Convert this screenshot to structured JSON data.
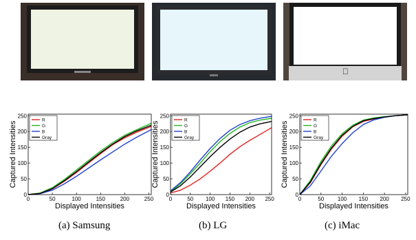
{
  "photos": [
    {
      "monitor": "Samsung",
      "screen_color": "#eef3e4",
      "bezel_color": "#1c1c1c",
      "background_color": "#3a2e28"
    },
    {
      "monitor": "LG",
      "screen_color": "#e6f6fb",
      "bezel_color": "#2a2c30",
      "background_color": "#262a30"
    },
    {
      "monitor": "iMac",
      "screen_color": "#ffffff",
      "bezel_color": "#1a1a1a",
      "background_color": "#50463e",
      "logo": "apple-logo-icon"
    }
  ],
  "chart_data": [
    {
      "type": "line",
      "xlabel": "Displayed Intensities",
      "ylabel": "Captured Intensities",
      "xlim": [
        0,
        255
      ],
      "ylim": [
        0,
        255
      ],
      "xticks": [
        0,
        50,
        100,
        150,
        200,
        250
      ],
      "yticks": [
        0,
        50,
        100,
        150,
        200,
        250
      ],
      "x": [
        0,
        25,
        50,
        75,
        100,
        125,
        150,
        175,
        200,
        225,
        255
      ],
      "legend": "top-left",
      "series": [
        {
          "name": "R",
          "color": "#e02020",
          "values": [
            0,
            4,
            18,
            42,
            70,
            100,
            130,
            158,
            180,
            198,
            216
          ]
        },
        {
          "name": "G",
          "color": "#22b722",
          "values": [
            0,
            5,
            22,
            48,
            78,
            108,
            138,
            165,
            188,
            206,
            226
          ]
        },
        {
          "name": "B",
          "color": "#2040d0",
          "values": [
            0,
            3,
            14,
            34,
            58,
            84,
            110,
            135,
            160,
            182,
            206
          ]
        },
        {
          "name": "Gray",
          "color": "#000000",
          "values": [
            0,
            4,
            19,
            44,
            73,
            103,
            133,
            160,
            184,
            202,
            220
          ]
        }
      ],
      "caption": "(a)  Samsung"
    },
    {
      "type": "line",
      "xlabel": "Displayed Intensities",
      "ylabel": "Captured Intensities",
      "xlim": [
        0,
        255
      ],
      "ylim": [
        0,
        255
      ],
      "xticks": [
        0,
        50,
        100,
        150,
        200,
        250
      ],
      "yticks": [
        0,
        50,
        100,
        150,
        200,
        250
      ],
      "x": [
        0,
        25,
        50,
        75,
        100,
        125,
        150,
        175,
        200,
        225,
        255
      ],
      "legend": "top-left",
      "series": [
        {
          "name": "R",
          "color": "#e02020",
          "values": [
            5,
            14,
            30,
            50,
            74,
            100,
            128,
            152,
            172,
            190,
            212
          ]
        },
        {
          "name": "G",
          "color": "#22b722",
          "values": [
            10,
            34,
            66,
            100,
            136,
            168,
            194,
            214,
            228,
            236,
            242
          ]
        },
        {
          "name": "B",
          "color": "#2040d0",
          "values": [
            12,
            38,
            72,
            110,
            146,
            178,
            204,
            222,
            234,
            242,
            248
          ]
        },
        {
          "name": "Gray",
          "color": "#000000",
          "values": [
            8,
            28,
            56,
            88,
            120,
            150,
            176,
            198,
            214,
            224,
            232
          ]
        }
      ],
      "caption": "(b)  LG"
    },
    {
      "type": "line",
      "xlabel": "Displayed Intensities",
      "ylabel": "Captured Intensities",
      "xlim": [
        0,
        255
      ],
      "ylim": [
        0,
        255
      ],
      "xticks": [
        0,
        50,
        100,
        150,
        200,
        250
      ],
      "yticks": [
        0,
        50,
        100,
        150,
        200,
        250
      ],
      "x": [
        0,
        25,
        50,
        75,
        100,
        125,
        150,
        175,
        200,
        225,
        255
      ],
      "legend": "top-left",
      "series": [
        {
          "name": "R",
          "color": "#e02020",
          "values": [
            0,
            38,
            95,
            145,
            185,
            215,
            232,
            240,
            246,
            250,
            253
          ]
        },
        {
          "name": "G",
          "color": "#22b722",
          "values": [
            0,
            45,
            105,
            155,
            193,
            220,
            236,
            243,
            247,
            250,
            253
          ]
        },
        {
          "name": "B",
          "color": "#2040d0",
          "values": [
            0,
            28,
            75,
            122,
            162,
            196,
            222,
            237,
            245,
            250,
            253
          ]
        },
        {
          "name": "Gray",
          "color": "#000000",
          "values": [
            0,
            40,
            98,
            148,
            188,
            216,
            234,
            241,
            246,
            250,
            253
          ]
        }
      ],
      "caption": "(c)  iMac"
    }
  ]
}
